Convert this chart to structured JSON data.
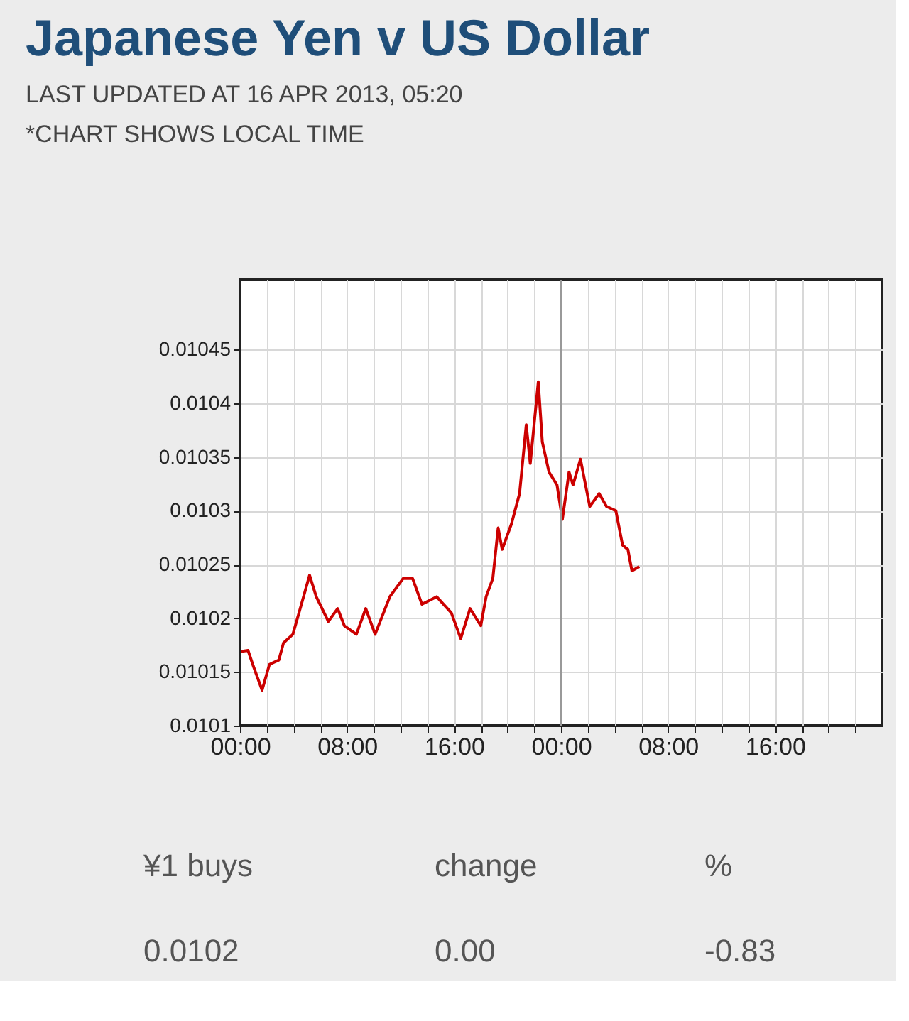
{
  "chart_data": {
    "type": "line",
    "title": "Japanese Yen v US Dollar",
    "subtitle": "LAST UPDATED AT 16 APR 2013, 05:20\n*CHART SHOWS LOCAL TIME",
    "x": [
      "2013-04-15T00:04",
      "2013-04-15T00:36",
      "2013-04-15T00:57",
      "2013-04-15T01:39",
      "2013-04-15T02:12",
      "2013-04-15T02:54",
      "2013-04-15T03:15",
      "2013-04-15T03:57",
      "2013-04-15T04:30",
      "2013-04-15T05:12",
      "2013-04-15T05:42",
      "2013-04-15T06:36",
      "2013-04-15T07:18",
      "2013-04-15T07:48",
      "2013-04-15T08:42",
      "2013-04-15T09:24",
      "2013-04-15T10:06",
      "2013-04-15T11:12",
      "2013-04-15T12:12",
      "2013-04-15T12:54",
      "2013-04-15T13:36",
      "2013-04-15T14:42",
      "2013-04-15T15:48",
      "2013-04-15T16:30",
      "2013-04-15T17:12",
      "2013-04-15T18:00",
      "2013-04-15T18:24",
      "2013-04-15T18:54",
      "2013-04-15T19:18",
      "2013-04-15T19:36",
      "2013-04-15T20:18",
      "2013-04-15T20:54",
      "2013-04-15T21:24",
      "2013-04-15T21:42",
      "2013-04-15T22:18",
      "2013-04-15T22:36",
      "2013-04-15T23:06",
      "2013-04-15T23:42",
      "2013-04-16T00:06",
      "2013-04-16T00:36",
      "2013-04-16T00:54",
      "2013-04-16T01:27",
      "2013-04-16T02:09",
      "2013-04-16T02:51",
      "2013-04-16T03:24",
      "2013-04-16T04:06",
      "2013-04-16T04:36",
      "2013-04-16T05:00",
      "2013-04-16T05:18",
      "2013-04-16T05:51"
    ],
    "series": [
      {
        "color": "#cc0000",
        "values": [
          0.010169,
          0.01017,
          0.010157,
          0.010133,
          0.010157,
          0.010161,
          0.010177,
          0.010185,
          0.010209,
          0.01024,
          0.01022,
          0.010197,
          0.010209,
          0.010193,
          0.010185,
          0.010209,
          0.010185,
          0.01022,
          0.010237,
          0.010237,
          0.010213,
          0.01022,
          0.010205,
          0.010181,
          0.010209,
          0.010193,
          0.01022,
          0.010237,
          0.010284,
          0.010264,
          0.010288,
          0.010316,
          0.01038,
          0.010344,
          0.01042,
          0.010364,
          0.010336,
          0.010324,
          0.010292,
          0.010336,
          0.010324,
          0.010348,
          0.010304,
          0.010316,
          0.010304,
          0.0103,
          0.010268,
          0.010264,
          0.010244,
          0.010248
        ]
      }
    ],
    "xlim": [
      "2013-04-15T00:00",
      "2013-04-17T00:00"
    ],
    "xticks": [
      {
        "value": "2013-04-15T00:00",
        "label": "00:00"
      },
      {
        "value": "2013-04-15T02:00",
        "label": null
      },
      {
        "value": "2013-04-15T04:00",
        "label": null
      },
      {
        "value": "2013-04-15T06:00",
        "label": null
      },
      {
        "value": "2013-04-15T08:00",
        "label": "08:00"
      },
      {
        "value": "2013-04-15T10:00",
        "label": null
      },
      {
        "value": "2013-04-15T12:00",
        "label": null
      },
      {
        "value": "2013-04-15T14:00",
        "label": null
      },
      {
        "value": "2013-04-15T16:00",
        "label": "16:00"
      },
      {
        "value": "2013-04-15T18:00",
        "label": null
      },
      {
        "value": "2013-04-15T20:00",
        "label": null
      },
      {
        "value": "2013-04-15T22:00",
        "label": null
      },
      {
        "value": "2013-04-16T00:00",
        "label": "00:00"
      },
      {
        "value": "2013-04-16T02:00",
        "label": null
      },
      {
        "value": "2013-04-16T04:00",
        "label": null
      },
      {
        "value": "2013-04-16T06:00",
        "label": null
      },
      {
        "value": "2013-04-16T08:00",
        "label": "08:00"
      },
      {
        "value": "2013-04-16T10:00",
        "label": null
      },
      {
        "value": "2013-04-16T12:00",
        "label": null
      },
      {
        "value": "2013-04-16T14:00",
        "label": null
      },
      {
        "value": "2013-04-16T16:00",
        "label": "16:00"
      },
      {
        "value": "2013-04-16T18:00",
        "label": null
      },
      {
        "value": "2013-04-16T20:00",
        "label": null
      },
      {
        "value": "2013-04-16T22:00",
        "label": null
      }
    ],
    "ylim": [
      0.0101,
      0.010515
    ],
    "yticks": [
      0.0101,
      0.01015,
      0.0102,
      0.01025,
      0.0103,
      0.01035,
      0.0104,
      0.01045
    ],
    "grid": true,
    "ref_lines": [
      {
        "axis": "x",
        "value": "2013-04-16T00:00",
        "color": "#999999"
      }
    ],
    "annotations": [
      "¥1 buys",
      "change",
      "%",
      "0.0102",
      "0.00",
      "-0.83"
    ]
  }
}
